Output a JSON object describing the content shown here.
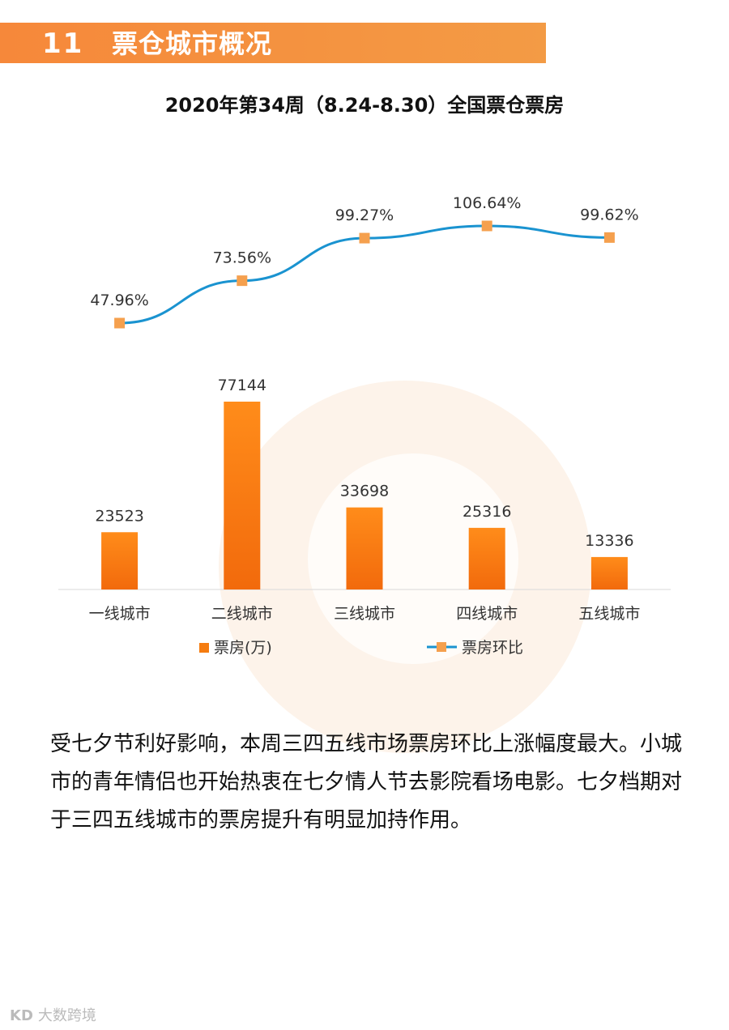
{
  "header": {
    "number": "11",
    "title": "票仓城市概况",
    "color": "#F6883A"
  },
  "chart_data": {
    "type": "bar",
    "title": "2020年第34周（8.24-8.30）全国票仓票房",
    "categories": [
      "一线城市",
      "二线城市",
      "三线城市",
      "四线城市",
      "五线城市"
    ],
    "series": [
      {
        "name": "票房(万)",
        "type": "bar",
        "values": [
          23523,
          77144,
          33698,
          25316,
          13336
        ],
        "labels": [
          "23523",
          "77144",
          "33698",
          "25316",
          "13336"
        ],
        "color": "#F57C10"
      },
      {
        "name": "票房环比",
        "type": "line",
        "values": [
          47.96,
          73.56,
          99.27,
          106.64,
          99.62
        ],
        "labels": [
          "47.96%",
          "73.56%",
          "99.27%",
          "106.64%",
          "99.62%"
        ],
        "line_color": "#1A93D0",
        "marker_color": "#F5A04E"
      }
    ],
    "legend_position": "bottom",
    "grid": false
  },
  "paragraph": "受七夕节利好影响，本周三四五线市场票房环比上涨幅度最大。小城市的青年情侣也开始热衷在七夕情人节去影院看场电影。七夕档期对于三四五线城市的票房提升有明显加持作用。",
  "footer": {
    "logo_text": "大数跨境",
    "logo_mark": "KD"
  }
}
